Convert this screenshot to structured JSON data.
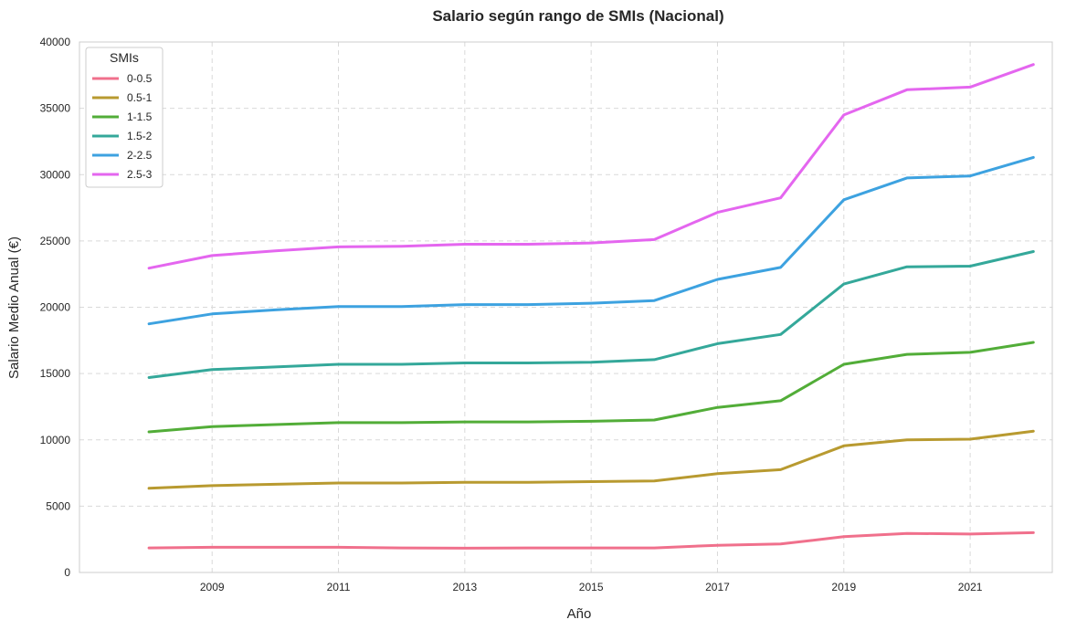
{
  "chart_data": {
    "type": "line",
    "title": "Salario según rango de SMIs (Nacional)",
    "xlabel": "Año",
    "ylabel": "Salario Medio Anual (€)",
    "x": [
      2008,
      2009,
      2010,
      2011,
      2012,
      2013,
      2014,
      2015,
      2016,
      2017,
      2018,
      2019,
      2020,
      2021,
      2022
    ],
    "xlim": [
      2006.9,
      2022.3
    ],
    "ylim": [
      0,
      40000
    ],
    "xticks": [
      2009,
      2011,
      2013,
      2015,
      2017,
      2019,
      2021
    ],
    "yticks": [
      0,
      5000,
      10000,
      15000,
      20000,
      25000,
      30000,
      35000,
      40000
    ],
    "grid": true,
    "legend_title": "SMIs",
    "legend_position": "top-left",
    "series": [
      {
        "name": "0-0.5",
        "color": "#f0708c",
        "values": [
          1850,
          1900,
          1900,
          1900,
          1850,
          1830,
          1850,
          1850,
          1850,
          2050,
          2150,
          2700,
          2950,
          2900,
          3000
        ]
      },
      {
        "name": "0.5-1",
        "color": "#b89a30",
        "values": [
          6350,
          6550,
          6650,
          6750,
          6750,
          6800,
          6800,
          6850,
          6900,
          7450,
          7750,
          9550,
          10000,
          10050,
          10650
        ]
      },
      {
        "name": "1-1.5",
        "color": "#52ad38",
        "values": [
          10600,
          11000,
          11150,
          11300,
          11300,
          11350,
          11350,
          11400,
          11500,
          12450,
          12950,
          15700,
          16450,
          16600,
          17350
        ]
      },
      {
        "name": "1.5-2",
        "color": "#34a89a",
        "values": [
          14700,
          15300,
          15500,
          15700,
          15700,
          15800,
          15800,
          15850,
          16050,
          17250,
          17950,
          21750,
          23050,
          23100,
          24200
        ]
      },
      {
        "name": "2-2.5",
        "color": "#3da2e0",
        "values": [
          18750,
          19500,
          19800,
          20050,
          20050,
          20200,
          20200,
          20300,
          20500,
          22100,
          23000,
          28100,
          29750,
          29900,
          31300
        ]
      },
      {
        "name": "2.5-3",
        "color": "#e466ef",
        "values": [
          22950,
          23900,
          24250,
          24550,
          24600,
          24750,
          24750,
          24850,
          25100,
          27150,
          28250,
          34500,
          36400,
          36600,
          38300
        ]
      }
    ]
  }
}
